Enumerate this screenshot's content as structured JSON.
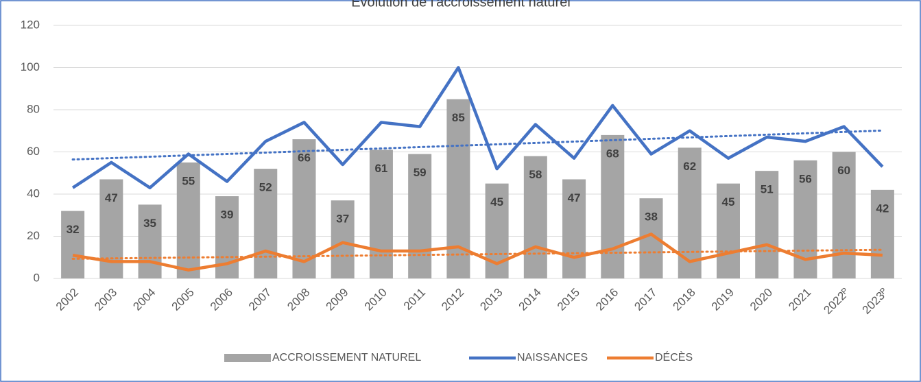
{
  "chart_data": {
    "type": "bar_line",
    "title": "Évolution de l'accroissement naturel",
    "categories": [
      "2002",
      "2003",
      "2004",
      "2005",
      "2006",
      "2007",
      "2008",
      "2009",
      "2010",
      "2011",
      "2012",
      "2013",
      "2014",
      "2015",
      "2016",
      "2017",
      "2018",
      "2019",
      "2020",
      "2021",
      "2022ᴾ",
      "2023ᴾ"
    ],
    "series": [
      {
        "name": "ACCROISSEMENT NATUREL",
        "type": "bar",
        "color": "#a5a5a5",
        "values": [
          32,
          47,
          35,
          55,
          39,
          52,
          66,
          37,
          61,
          59,
          85,
          45,
          58,
          47,
          68,
          38,
          62,
          45,
          51,
          56,
          60,
          42
        ]
      },
      {
        "name": "NAISSANCES",
        "type": "line",
        "color": "#4472c4",
        "trendline": true,
        "values": [
          43,
          55,
          43,
          59,
          46,
          65,
          74,
          54,
          74,
          72,
          100,
          52,
          73,
          57,
          82,
          59,
          70,
          57,
          67,
          65,
          72,
          53
        ]
      },
      {
        "name": "DÉCÈS",
        "type": "line",
        "color": "#ed7d31",
        "trendline": true,
        "values": [
          11,
          8,
          8,
          4,
          7,
          13,
          8,
          17,
          13,
          13,
          15,
          7,
          15,
          10,
          14,
          21,
          8,
          12,
          16,
          9,
          12,
          11
        ]
      }
    ],
    "ylim": [
      0,
      120
    ],
    "yticks": [
      0,
      20,
      40,
      60,
      80,
      100,
      120
    ],
    "grid": true,
    "legend": "bottom"
  }
}
